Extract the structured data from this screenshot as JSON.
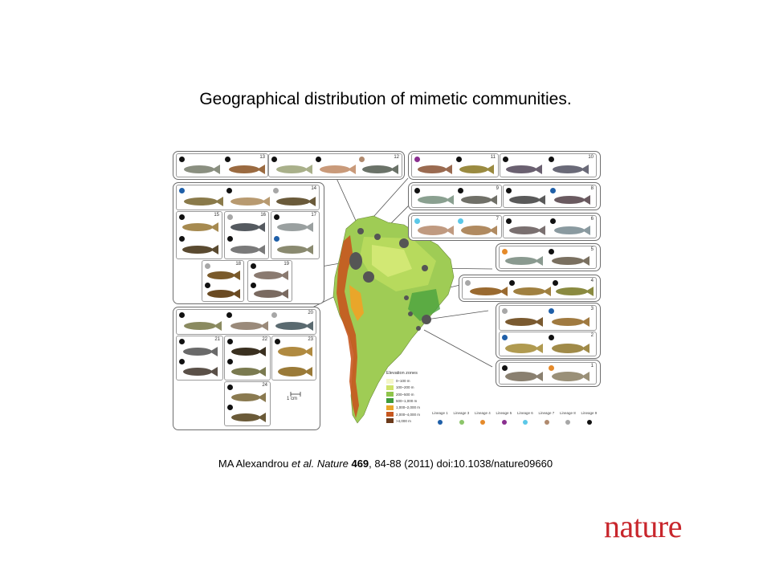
{
  "slide": {
    "title": "Geographical distribution of mimetic communities.",
    "citation": {
      "authors": "MA Alexandrou",
      "etal": "et al.",
      "journal": "Nature",
      "volume": "469",
      "rest": ", 84-88 (2011) doi:10.1038/nature09660"
    },
    "logo": "nature"
  },
  "figure": {
    "scale_label": "1 cm",
    "elevation": {
      "title": "Elevation zones",
      "zones": [
        {
          "label": "0–100 m",
          "color": "#f4f6c8"
        },
        {
          "label": "100–200 m",
          "color": "#cfe36a"
        },
        {
          "label": "200–500 m",
          "color": "#8fc54a"
        },
        {
          "label": "500–1,000 m",
          "color": "#3f9a3a"
        },
        {
          "label": "1,000–2,000 m",
          "color": "#e9a62a"
        },
        {
          "label": "2,000–4,000 m",
          "color": "#c7571f"
        },
        {
          "label": ">4,000 m",
          "color": "#6b3a1a"
        }
      ]
    },
    "lineages": [
      {
        "label": "Lineage 1",
        "color": "#1f5fa8"
      },
      {
        "label": "Lineage 3",
        "color": "#8cc56a"
      },
      {
        "label": "Lineage 4",
        "color": "#e58a2a"
      },
      {
        "label": "Lineage 5",
        "color": "#8a2f8f"
      },
      {
        "label": "Lineage 6",
        "color": "#5cc8e8"
      },
      {
        "label": "Lineage 7",
        "color": "#b08a6e"
      },
      {
        "label": "Lineage 8",
        "color": "#a7a7a7"
      },
      {
        "label": "Lineage 9",
        "color": "#111111"
      }
    ],
    "communities": [
      "1",
      "2",
      "3",
      "4",
      "5",
      "6",
      "7",
      "8",
      "9",
      "10",
      "11",
      "12",
      "13",
      "14",
      "15",
      "16",
      "17",
      "18",
      "19",
      "20",
      "21",
      "22",
      "23",
      "24"
    ]
  }
}
